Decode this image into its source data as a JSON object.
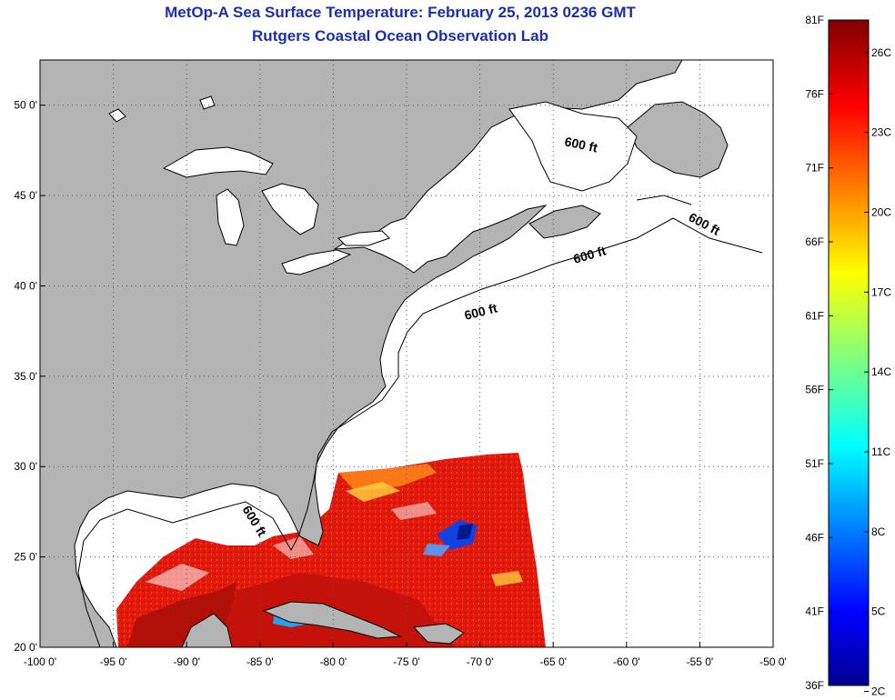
{
  "header": {
    "title": "MetOp-A Sea Surface Temperature:  February 25, 2013 0236 GMT",
    "subtitle": "Rutgers Coastal Ocean Observation Lab"
  },
  "map": {
    "lon_range": [
      -100,
      -50
    ],
    "lat_range": [
      20,
      52.5
    ],
    "lon_ticks": [
      "-100 0'",
      "-95 0'",
      "-90 0'",
      "-85 0'",
      "-80 0'",
      "-75 0'",
      "-70 0'",
      "-65 0'",
      "-60 0'",
      "-55 0'",
      "-50 0'"
    ],
    "lat_ticks": [
      "50 0'",
      "45 0'",
      "40 0'",
      "35 0'",
      "30 0'",
      "25 0'",
      "20 0'"
    ],
    "grid": "dotted",
    "land_color": "#b4b4b4",
    "ocean_color": "#ffffff",
    "contour_label": "600 ft"
  },
  "colorbar": {
    "f_labels": [
      "81F",
      "76F",
      "71F",
      "66F",
      "61F",
      "56F",
      "51F",
      "46F",
      "41F",
      "36F"
    ],
    "c_labels": [
      "26C",
      "23C",
      "20C",
      "17C",
      "14C",
      "11C",
      "8C",
      "5C",
      "2C"
    ],
    "colormap": "jet"
  }
}
